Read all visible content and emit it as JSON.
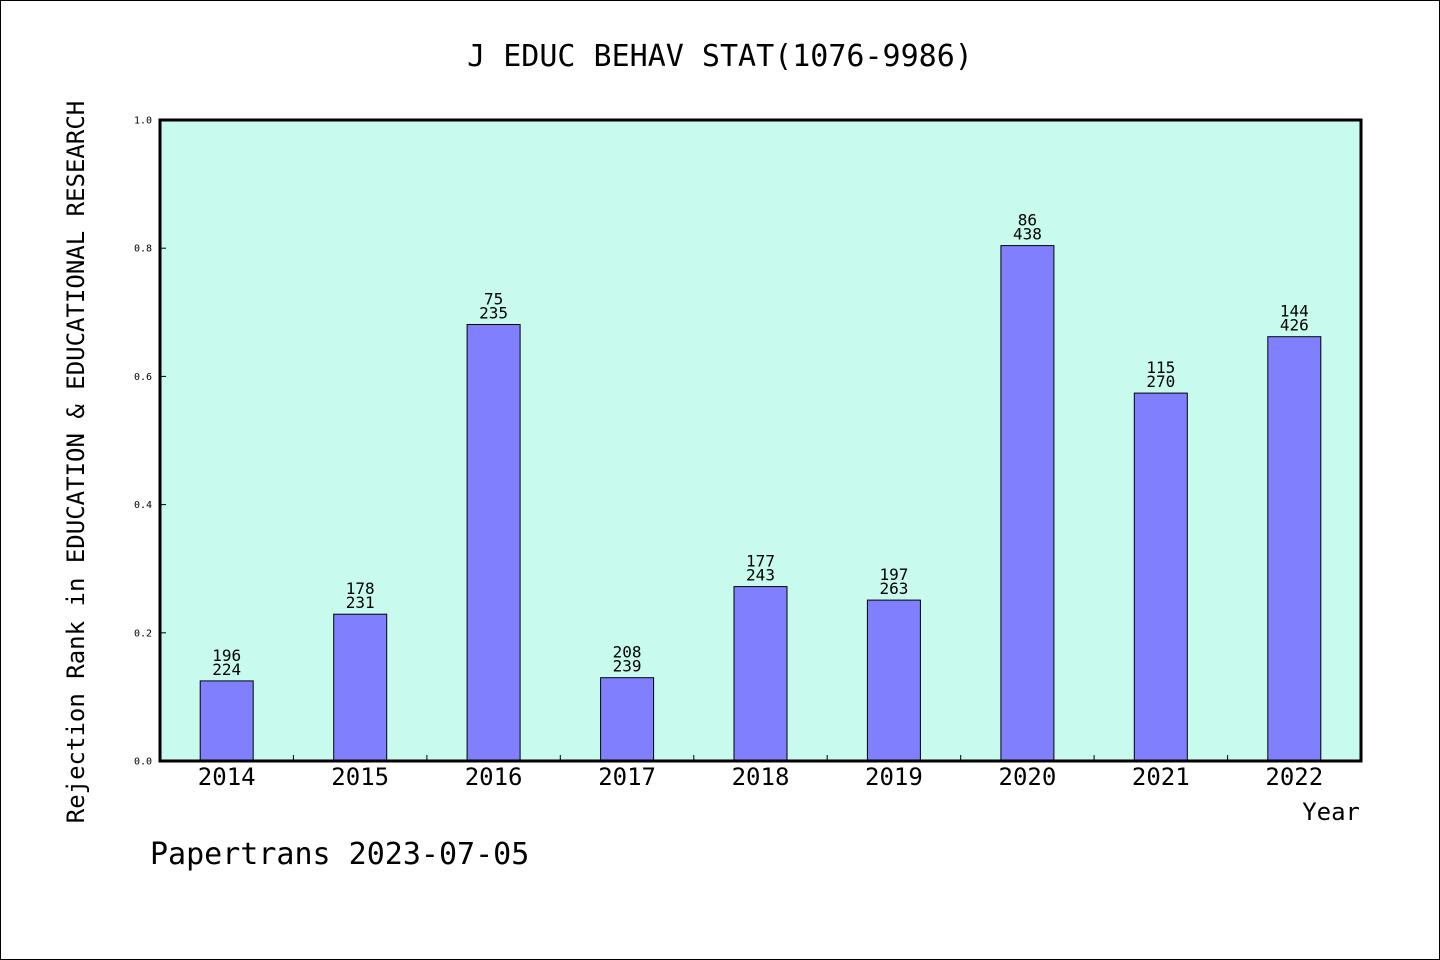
{
  "chart_data": {
    "type": "bar",
    "title": "J EDUC BEHAV STAT(1076-9986)",
    "xlabel": "Year",
    "ylabel": "Rejection Rank in EDUCATION & EDUCATIONAL RESEARCH",
    "ylim": [
      0,
      1.0
    ],
    "yticks": [
      "0.0",
      "0.2",
      "0.4",
      "0.6",
      "0.8",
      "1.0"
    ],
    "categories": [
      "2014",
      "2015",
      "2016",
      "2017",
      "2018",
      "2019",
      "2020",
      "2021",
      "2022"
    ],
    "values": [
      0.125,
      0.229,
      0.681,
      0.13,
      0.272,
      0.251,
      0.804,
      0.574,
      0.662
    ],
    "labels_top": [
      "196",
      "178",
      "75",
      "208",
      "177",
      "197",
      "86",
      "115",
      "144"
    ],
    "labels_bottom": [
      "224",
      "231",
      "235",
      "239",
      "243",
      "263",
      "438",
      "270",
      "426"
    ],
    "grid": false,
    "colors": {
      "plot_background": "#c8fbee",
      "bar_fill": "#8080ff",
      "bar_stroke": "#000000"
    }
  },
  "footer": "Papertrans 2023-07-05"
}
